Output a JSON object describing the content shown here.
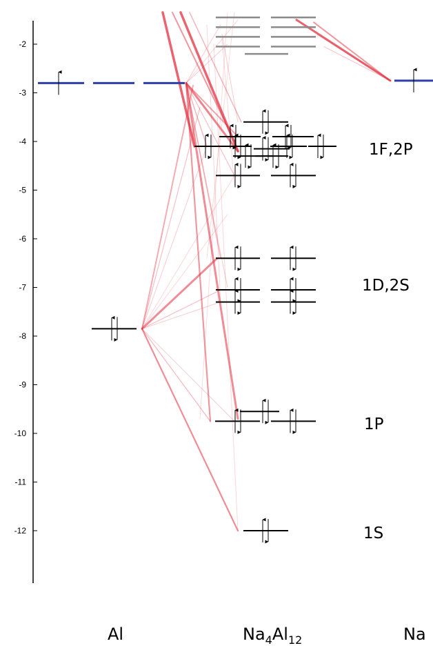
{
  "diagram": {
    "y_axis": {
      "ticks": [
        -2,
        -3,
        -4,
        -5,
        -6,
        -7,
        -8,
        -9,
        -10,
        -11,
        -12
      ],
      "tick_labels": [
        "-2",
        "-3",
        "-4",
        "-5",
        "-6",
        "-7",
        "-8",
        "-9",
        "-10",
        "-11",
        "-12"
      ],
      "range": [
        -13,
        -1.5
      ]
    },
    "columns": {
      "left": "Al",
      "middle_main": "Na",
      "middle_sub1": "4",
      "middle_main2": "Al",
      "middle_sub2": "12",
      "right": "Na"
    },
    "shell_labels": [
      {
        "text": "1F,2P",
        "energy": -4.1
      },
      {
        "text": "1D,2S",
        "energy": -7.0
      },
      {
        "text": "1P",
        "energy": -9.7
      },
      {
        "text": "1S",
        "energy": -12.0
      }
    ],
    "colors": {
      "occupied": "#000000",
      "unoccupied": "#8a8a8a",
      "atomic_blue": "#2b3fa6",
      "correlation": "#e2303f"
    }
  }
}
